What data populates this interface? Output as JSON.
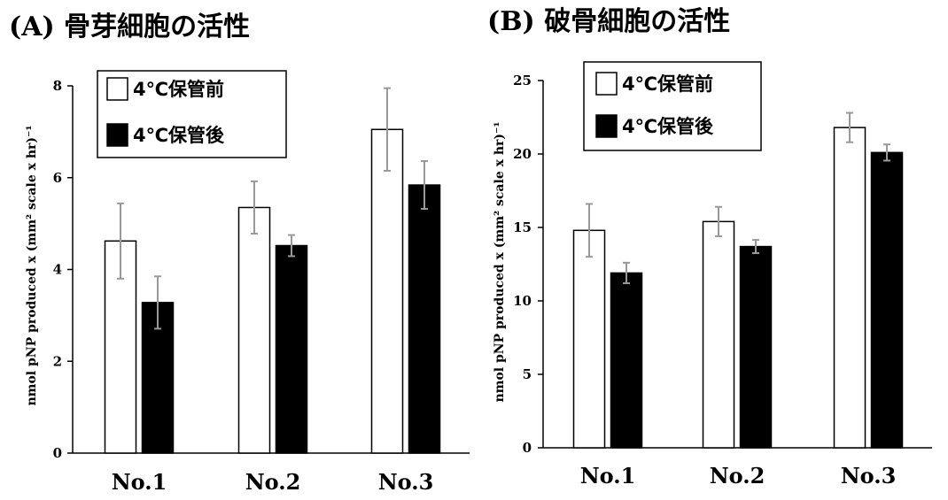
{
  "chart_data": [
    {
      "type": "bar",
      "title": "(A) 骨芽細胞の活性",
      "ylabel": "nmol pNP produced x (mm² scale x hr)⁻¹",
      "categories": [
        "No.1",
        "No.2",
        "No.3"
      ],
      "ylim": [
        0,
        8
      ],
      "yticks": [
        "0",
        "2",
        "4",
        "6",
        "8"
      ],
      "legend_position": "top-left",
      "series": [
        {
          "name": "4℃保管前",
          "color": "#ffffff",
          "values": [
            4.62,
            5.35,
            7.05
          ],
          "errors": [
            0.82,
            0.57,
            0.9
          ]
        },
        {
          "name": "4℃保管後",
          "color": "#000000",
          "values": [
            3.28,
            4.52,
            5.84
          ],
          "errors": [
            0.57,
            0.23,
            0.52
          ]
        }
      ]
    },
    {
      "type": "bar",
      "title": "(B) 破骨細胞の活性",
      "ylabel": "nmol pNP produced x (mm² scale x hr)⁻¹",
      "categories": [
        "No.1",
        "No.2",
        "No.3"
      ],
      "ylim": [
        0,
        25
      ],
      "yticks": [
        "0",
        "5",
        "10",
        "15",
        "20",
        "25"
      ],
      "legend_position": "top-left",
      "series": [
        {
          "name": "4℃保管前",
          "color": "#ffffff",
          "values": [
            14.8,
            15.4,
            21.8
          ],
          "errors": [
            1.8,
            1.0,
            1.0
          ]
        },
        {
          "name": "4℃保管後",
          "color": "#000000",
          "values": [
            11.9,
            13.7,
            20.1
          ],
          "errors": [
            0.7,
            0.45,
            0.55
          ]
        }
      ]
    }
  ]
}
